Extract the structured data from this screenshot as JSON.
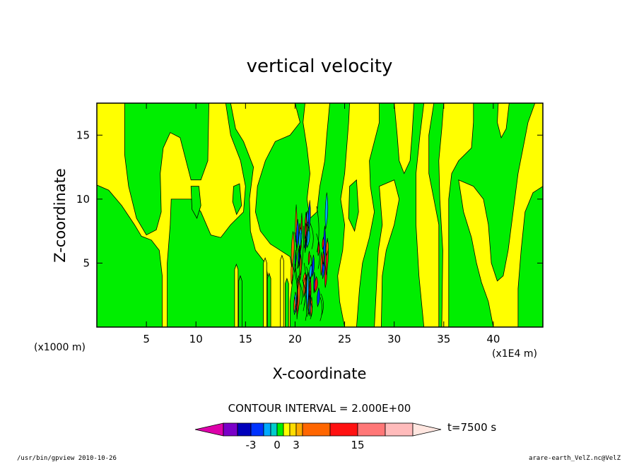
{
  "chart_data": {
    "type": "heatmap",
    "title": "vertical velocity",
    "xlabel": "X-coordinate",
    "ylabel": "Z-coordinate",
    "x_unit": "(x1000 m)",
    "x_scale_note": "(x1E4 m)",
    "xlim": [
      0,
      45
    ],
    "ylim": [
      0,
      17.5
    ],
    "x_ticks": [
      5,
      10,
      15,
      20,
      25,
      30,
      35,
      40
    ],
    "y_ticks": [
      5,
      10,
      15
    ],
    "contour_interval": "CONTOUR INTERVAL = 2.000E+00",
    "time_label": "t=7500 s",
    "colorbar": {
      "colors": [
        "#dd00aa",
        "#7a00c8",
        "#0000bb",
        "#0033ff",
        "#00aaff",
        "#00cccc",
        "#00ee00",
        "#ffff00",
        "#ffdd00",
        "#ffaa00",
        "#ff6600",
        "#ff1111",
        "#ff7777",
        "#ffbbbb",
        "#ffe6e0"
      ],
      "tick_labels": [
        {
          "text": "-3",
          "value": -3
        },
        {
          "text": "0",
          "value": 0
        },
        {
          "text": "3",
          "value": 3
        },
        {
          "text": "15",
          "value": 15
        }
      ]
    },
    "regions": {
      "background_color": "#00ee00",
      "positive_color": "#ffff00",
      "core_colors": [
        "#ff6600",
        "#ff1111",
        "#00aaff",
        "#0033ff"
      ]
    }
  },
  "footer": {
    "left": "/usr/bin/gpview  2010-10-26",
    "right": "arare-earth_VelZ.nc@VelZ"
  }
}
